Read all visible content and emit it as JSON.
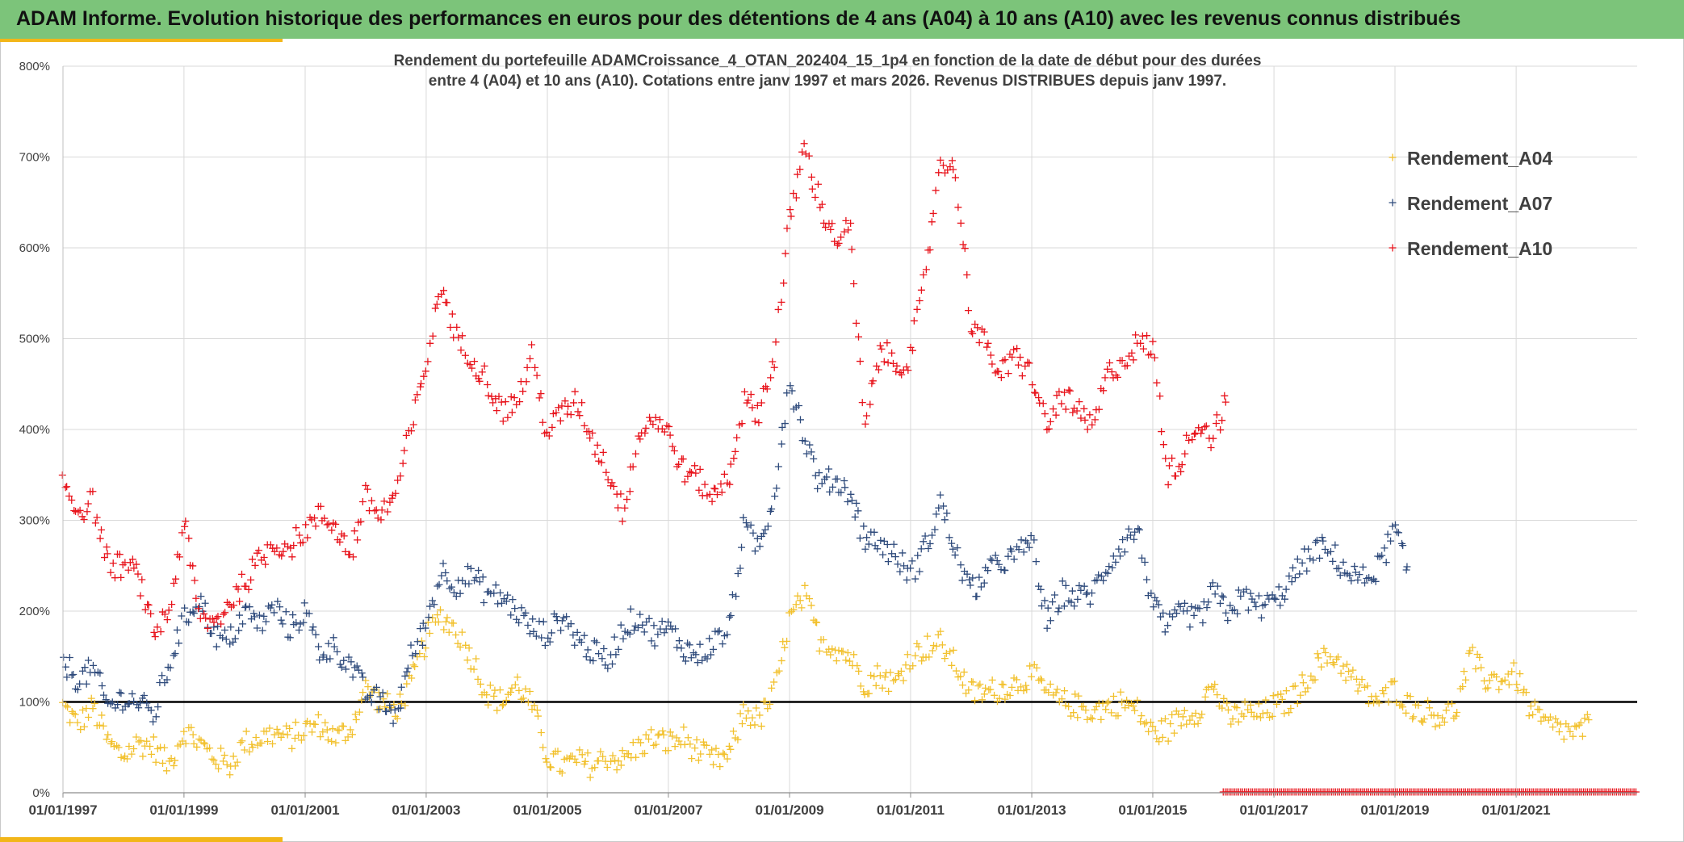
{
  "header": {
    "title": "ADAM Informe. Evolution historique des performances en euros pour des détentions de 4 ans (A04) à 10 ans (A10) avec les revenus connus distribués"
  },
  "colors": {
    "banner": "#7cc47a",
    "accent": "#f2b619",
    "A04": "#f2c12e",
    "A07": "#2f4b7c",
    "A10": "#e8141c",
    "reference_line": "#000000"
  },
  "chart_data": {
    "type": "scatter",
    "title": "Rendement du portefeuille ADAMCroissance_4_OTAN_202404_15_1p4  en fonction de la date de début pour des durées",
    "subtitle": "entre 4 (A04) et 10 ans (A10). Cotations entre janv 1997 et mars 2026. Revenus DISTRIBUES depuis janv 1997.",
    "xlabel": "",
    "ylabel": "",
    "x_range": [
      "1997-01-01",
      "2023-01-01"
    ],
    "y_range": [
      0,
      800
    ],
    "x_ticks": [
      "01/01/1997",
      "01/01/1999",
      "01/01/2001",
      "01/01/2003",
      "01/01/2005",
      "01/01/2007",
      "01/01/2009",
      "01/01/2011",
      "01/01/2013",
      "01/01/2015",
      "01/01/2017",
      "01/01/2019",
      "01/01/2021"
    ],
    "y_ticks": [
      "0%",
      "100%",
      "200%",
      "300%",
      "400%",
      "500%",
      "600%",
      "700%",
      "800%"
    ],
    "reference_line_y": 100,
    "grid": true,
    "legend_position": "top-right",
    "marker": "+",
    "series": [
      {
        "name": "Rendement_A04",
        "color": "#f2c12e",
        "points": [
          [
            "1997-01-01",
            95
          ],
          [
            "1997-04-01",
            75
          ],
          [
            "1997-07-01",
            95
          ],
          [
            "1997-10-01",
            55
          ],
          [
            "1998-01-01",
            40
          ],
          [
            "1998-04-01",
            55
          ],
          [
            "1998-07-01",
            50
          ],
          [
            "1998-10-01",
            30
          ],
          [
            "1999-01-01",
            70
          ],
          [
            "1999-04-01",
            55
          ],
          [
            "1999-07-01",
            40
          ],
          [
            "1999-10-01",
            30
          ],
          [
            "2000-01-01",
            55
          ],
          [
            "2000-04-01",
            60
          ],
          [
            "2000-07-01",
            65
          ],
          [
            "2000-10-01",
            60
          ],
          [
            "2001-01-01",
            70
          ],
          [
            "2001-04-01",
            75
          ],
          [
            "2001-07-01",
            60
          ],
          [
            "2001-10-01",
            70
          ],
          [
            "2002-01-01",
            115
          ],
          [
            "2002-04-01",
            100
          ],
          [
            "2002-07-01",
            90
          ],
          [
            "2002-10-01",
            120
          ],
          [
            "2003-01-01",
            170
          ],
          [
            "2003-04-01",
            195
          ],
          [
            "2003-07-01",
            180
          ],
          [
            "2003-10-01",
            150
          ],
          [
            "2004-01-01",
            110
          ],
          [
            "2004-04-01",
            100
          ],
          [
            "2004-07-01",
            120
          ],
          [
            "2004-10-01",
            95
          ],
          [
            "2005-01-01",
            40
          ],
          [
            "2005-04-01",
            30
          ],
          [
            "2005-07-01",
            35
          ],
          [
            "2005-10-01",
            30
          ],
          [
            "2006-01-01",
            40
          ],
          [
            "2006-04-01",
            35
          ],
          [
            "2006-07-01",
            50
          ],
          [
            "2006-10-01",
            60
          ],
          [
            "2007-01-01",
            55
          ],
          [
            "2007-04-01",
            60
          ],
          [
            "2007-07-01",
            45
          ],
          [
            "2007-10-01",
            35
          ],
          [
            "2008-01-01",
            40
          ],
          [
            "2008-04-01",
            90
          ],
          [
            "2008-07-01",
            80
          ],
          [
            "2008-10-01",
            110
          ],
          [
            "2009-01-01",
            190
          ],
          [
            "2009-04-01",
            215
          ],
          [
            "2009-07-01",
            170
          ],
          [
            "2009-10-01",
            160
          ],
          [
            "2010-01-01",
            150
          ],
          [
            "2010-04-01",
            120
          ],
          [
            "2010-07-01",
            130
          ],
          [
            "2010-10-01",
            120
          ],
          [
            "2011-01-01",
            150
          ],
          [
            "2011-04-01",
            160
          ],
          [
            "2011-07-01",
            165
          ],
          [
            "2011-10-01",
            140
          ],
          [
            "2012-01-01",
            110
          ],
          [
            "2012-04-01",
            110
          ],
          [
            "2012-07-01",
            115
          ],
          [
            "2012-10-01",
            120
          ],
          [
            "2013-01-01",
            130
          ],
          [
            "2013-04-01",
            110
          ],
          [
            "2013-07-01",
            100
          ],
          [
            "2013-10-01",
            95
          ],
          [
            "2014-01-01",
            90
          ],
          [
            "2014-04-01",
            95
          ],
          [
            "2014-07-01",
            100
          ],
          [
            "2014-10-01",
            90
          ],
          [
            "2015-01-01",
            65
          ],
          [
            "2015-04-01",
            70
          ],
          [
            "2015-07-01",
            85
          ],
          [
            "2015-10-01",
            90
          ],
          [
            "2016-01-01",
            120
          ],
          [
            "2016-04-01",
            80
          ],
          [
            "2016-07-01",
            90
          ],
          [
            "2016-10-01",
            85
          ],
          [
            "2017-01-01",
            95
          ],
          [
            "2017-04-01",
            100
          ],
          [
            "2017-07-01",
            120
          ],
          [
            "2017-10-01",
            145
          ],
          [
            "2018-01-01",
            150
          ],
          [
            "2018-04-01",
            130
          ],
          [
            "2018-07-01",
            110
          ],
          [
            "2018-10-01",
            100
          ],
          [
            "2019-01-01",
            115
          ],
          [
            "2019-04-01",
            95
          ],
          [
            "2019-07-01",
            90
          ],
          [
            "2019-10-01",
            85
          ],
          [
            "2020-01-01",
            90
          ],
          [
            "2020-04-01",
            150
          ],
          [
            "2020-07-01",
            125
          ],
          [
            "2020-10-01",
            125
          ],
          [
            "2021-01-01",
            130
          ],
          [
            "2021-04-01",
            90
          ],
          [
            "2021-07-01",
            75
          ],
          [
            "2021-10-01",
            70
          ],
          [
            "2022-01-01",
            65
          ],
          [
            "2022-04-01",
            75
          ]
        ]
      },
      {
        "name": "Rendement_A07",
        "color": "#2f4b7c",
        "points": [
          [
            "1997-01-01",
            145
          ],
          [
            "1997-04-01",
            125
          ],
          [
            "1997-07-01",
            135
          ],
          [
            "1997-10-01",
            95
          ],
          [
            "1998-01-01",
            105
          ],
          [
            "1998-04-01",
            100
          ],
          [
            "1998-07-01",
            85
          ],
          [
            "1998-10-01",
            140
          ],
          [
            "1999-01-01",
            190
          ],
          [
            "1999-04-01",
            215
          ],
          [
            "1999-07-01",
            175
          ],
          [
            "1999-10-01",
            165
          ],
          [
            "2000-01-01",
            200
          ],
          [
            "2000-04-01",
            185
          ],
          [
            "2000-07-01",
            205
          ],
          [
            "2000-10-01",
            180
          ],
          [
            "2001-01-01",
            200
          ],
          [
            "2001-04-01",
            155
          ],
          [
            "2001-07-01",
            160
          ],
          [
            "2001-10-01",
            140
          ],
          [
            "2002-01-01",
            110
          ],
          [
            "2002-04-01",
            100
          ],
          [
            "2002-07-01",
            85
          ],
          [
            "2002-10-01",
            150
          ],
          [
            "2003-01-01",
            185
          ],
          [
            "2003-04-01",
            245
          ],
          [
            "2003-07-01",
            230
          ],
          [
            "2003-10-01",
            240
          ],
          [
            "2004-01-01",
            220
          ],
          [
            "2004-04-01",
            215
          ],
          [
            "2004-07-01",
            200
          ],
          [
            "2004-10-01",
            180
          ],
          [
            "2005-01-01",
            175
          ],
          [
            "2005-04-01",
            195
          ],
          [
            "2005-07-01",
            170
          ],
          [
            "2005-10-01",
            155
          ],
          [
            "2006-01-01",
            145
          ],
          [
            "2006-04-01",
            180
          ],
          [
            "2006-07-01",
            195
          ],
          [
            "2006-10-01",
            175
          ],
          [
            "2007-01-01",
            180
          ],
          [
            "2007-04-01",
            160
          ],
          [
            "2007-07-01",
            150
          ],
          [
            "2007-10-01",
            165
          ],
          [
            "2008-01-01",
            180
          ],
          [
            "2008-04-01",
            290
          ],
          [
            "2008-07-01",
            270
          ],
          [
            "2008-10-01",
            330
          ],
          [
            "2009-01-01",
            455
          ],
          [
            "2009-04-01",
            390
          ],
          [
            "2009-07-01",
            340
          ],
          [
            "2009-10-01",
            345
          ],
          [
            "2010-01-01",
            330
          ],
          [
            "2010-04-01",
            280
          ],
          [
            "2010-07-01",
            275
          ],
          [
            "2010-10-01",
            260
          ],
          [
            "2011-01-01",
            240
          ],
          [
            "2011-04-01",
            270
          ],
          [
            "2011-07-01",
            320
          ],
          [
            "2011-10-01",
            265
          ],
          [
            "2012-01-01",
            220
          ],
          [
            "2012-04-01",
            240
          ],
          [
            "2012-07-01",
            255
          ],
          [
            "2012-10-01",
            260
          ],
          [
            "2013-01-01",
            280
          ],
          [
            "2013-04-01",
            185
          ],
          [
            "2013-07-01",
            220
          ],
          [
            "2013-10-01",
            215
          ],
          [
            "2014-01-01",
            220
          ],
          [
            "2014-04-01",
            250
          ],
          [
            "2014-07-01",
            275
          ],
          [
            "2014-10-01",
            290
          ],
          [
            "2015-01-01",
            205
          ],
          [
            "2015-04-01",
            180
          ],
          [
            "2015-07-01",
            200
          ],
          [
            "2015-10-01",
            190
          ],
          [
            "2016-01-01",
            220
          ],
          [
            "2016-04-01",
            200
          ],
          [
            "2016-07-01",
            215
          ],
          [
            "2016-10-01",
            205
          ],
          [
            "2017-01-01",
            210
          ],
          [
            "2017-04-01",
            230
          ],
          [
            "2017-07-01",
            255
          ],
          [
            "2017-10-01",
            270
          ],
          [
            "2018-01-01",
            260
          ],
          [
            "2018-04-01",
            240
          ],
          [
            "2018-07-01",
            235
          ],
          [
            "2018-10-01",
            250
          ],
          [
            "2019-01-01",
            290
          ],
          [
            "2019-04-01",
            235
          ]
        ]
      },
      {
        "name": "Rendement_A10",
        "color": "#e8141c",
        "points": [
          [
            "1997-01-01",
            345
          ],
          [
            "1997-04-01",
            310
          ],
          [
            "1997-07-01",
            320
          ],
          [
            "1997-10-01",
            250
          ],
          [
            "1998-01-01",
            250
          ],
          [
            "1998-04-01",
            240
          ],
          [
            "1998-07-01",
            175
          ],
          [
            "1998-10-01",
            200
          ],
          [
            "1999-01-01",
            300
          ],
          [
            "1999-04-01",
            195
          ],
          [
            "1999-07-01",
            185
          ],
          [
            "1999-10-01",
            210
          ],
          [
            "2000-01-01",
            230
          ],
          [
            "2000-04-01",
            255
          ],
          [
            "2000-07-01",
            275
          ],
          [
            "2000-10-01",
            270
          ],
          [
            "2001-01-01",
            290
          ],
          [
            "2001-04-01",
            305
          ],
          [
            "2001-07-01",
            295
          ],
          [
            "2001-10-01",
            260
          ],
          [
            "2002-01-01",
            325
          ],
          [
            "2002-04-01",
            305
          ],
          [
            "2002-07-01",
            330
          ],
          [
            "2002-10-01",
            400
          ],
          [
            "2003-01-01",
            470
          ],
          [
            "2003-04-01",
            560
          ],
          [
            "2003-07-01",
            500
          ],
          [
            "2003-10-01",
            480
          ],
          [
            "2004-01-01",
            455
          ],
          [
            "2004-04-01",
            420
          ],
          [
            "2004-07-01",
            430
          ],
          [
            "2004-10-01",
            480
          ],
          [
            "2005-01-01",
            395
          ],
          [
            "2005-04-01",
            420
          ],
          [
            "2005-07-01",
            430
          ],
          [
            "2005-10-01",
            390
          ],
          [
            "2006-01-01",
            355
          ],
          [
            "2006-04-01",
            310
          ],
          [
            "2006-07-01",
            390
          ],
          [
            "2006-10-01",
            415
          ],
          [
            "2007-01-01",
            395
          ],
          [
            "2007-04-01",
            355
          ],
          [
            "2007-07-01",
            345
          ],
          [
            "2007-10-01",
            325
          ],
          [
            "2008-01-01",
            350
          ],
          [
            "2008-04-01",
            430
          ],
          [
            "2008-07-01",
            420
          ],
          [
            "2008-10-01",
            480
          ],
          [
            "2009-01-01",
            630
          ],
          [
            "2009-04-01",
            710
          ],
          [
            "2009-07-01",
            650
          ],
          [
            "2009-10-01",
            610
          ],
          [
            "2010-01-01",
            620
          ],
          [
            "2010-04-01",
            400
          ],
          [
            "2010-07-01",
            490
          ],
          [
            "2010-10-01",
            470
          ],
          [
            "2011-01-01",
            480
          ],
          [
            "2011-04-01",
            570
          ],
          [
            "2011-07-01",
            700
          ],
          [
            "2011-10-01",
            680
          ],
          [
            "2012-01-01",
            520
          ],
          [
            "2012-04-01",
            490
          ],
          [
            "2012-07-01",
            460
          ],
          [
            "2012-10-01",
            480
          ],
          [
            "2013-01-01",
            460
          ],
          [
            "2013-04-01",
            400
          ],
          [
            "2013-07-01",
            440
          ],
          [
            "2013-10-01",
            420
          ],
          [
            "2014-01-01",
            400
          ],
          [
            "2014-04-01",
            460
          ],
          [
            "2014-07-01",
            475
          ],
          [
            "2014-10-01",
            495
          ],
          [
            "2015-01-01",
            490
          ],
          [
            "2015-04-01",
            350
          ],
          [
            "2015-07-01",
            370
          ],
          [
            "2015-10-01",
            410
          ],
          [
            "2016-01-01",
            390
          ],
          [
            "2016-04-01",
            440
          ]
        ]
      }
    ],
    "zero_marker_range": [
      "2016-03-01",
      "2023-01-01"
    ]
  }
}
